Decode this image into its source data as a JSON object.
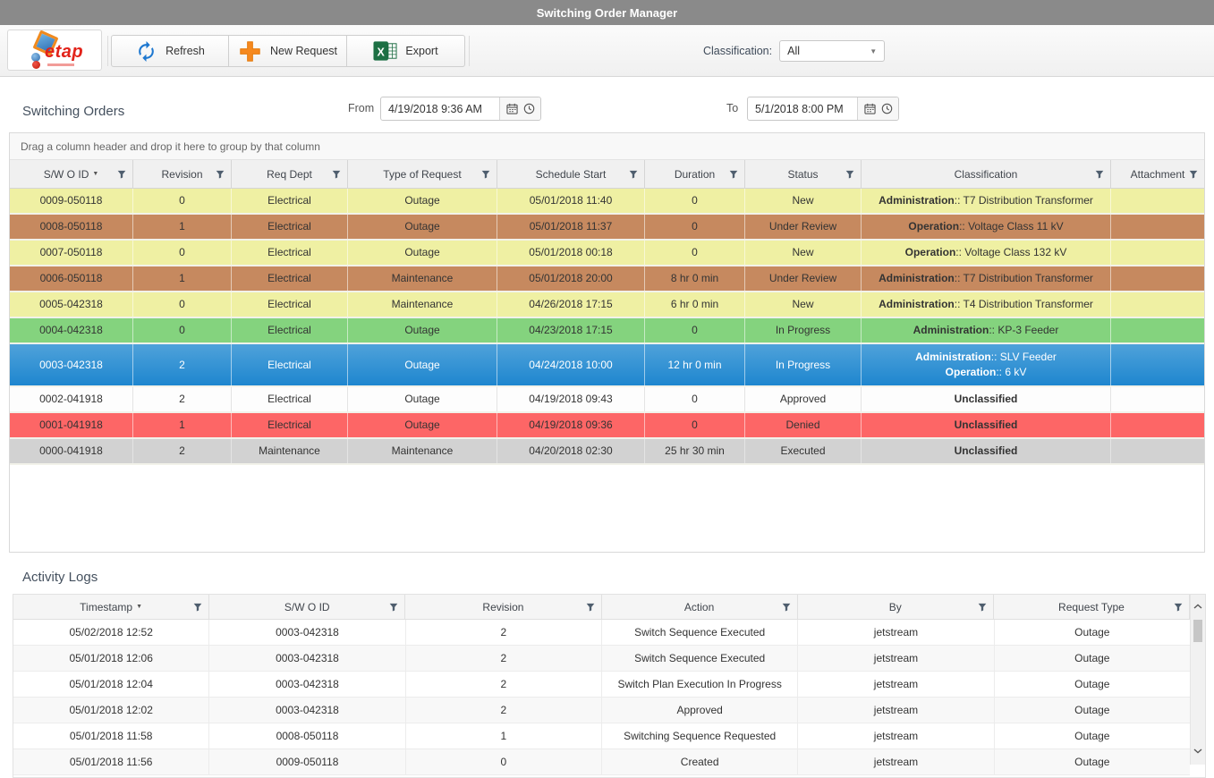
{
  "window": {
    "title": "Switching Order Manager"
  },
  "toolbar": {
    "logo_text": "etap",
    "buttons": [
      {
        "label": "Refresh",
        "icon": "refresh-icon"
      },
      {
        "label": "New Request",
        "icon": "plus-icon"
      },
      {
        "label": "Export",
        "icon": "excel-icon"
      }
    ],
    "classification_label": "Classification:",
    "classification_value": "All"
  },
  "orders": {
    "section_title": "Switching Orders",
    "from_label": "From",
    "from_value": "4/19/2018 9:36 AM",
    "to_label": "To",
    "to_value": "5/1/2018 8:00 PM",
    "group_hint": "Drag a column header and drop it here to group by that column",
    "columns": [
      {
        "label": "S/W O ID",
        "sorted": "desc"
      },
      {
        "label": "Revision"
      },
      {
        "label": "Req Dept"
      },
      {
        "label": "Type of Request"
      },
      {
        "label": "Schedule Start"
      },
      {
        "label": "Duration"
      },
      {
        "label": "Status"
      },
      {
        "label": "Classification"
      },
      {
        "label": "Attachment"
      }
    ],
    "rows": [
      {
        "id": "0009-050118",
        "revision": "0",
        "dept": "Electrical",
        "type": "Outage",
        "start": "05/01/2018 11:40",
        "duration": "0",
        "status": "New",
        "classification": [
          {
            "bold": "Administration",
            "text": ":: T7 Distribution Transformer"
          }
        ],
        "attachment": "",
        "color": "yellow"
      },
      {
        "id": "0008-050118",
        "revision": "1",
        "dept": "Electrical",
        "type": "Outage",
        "start": "05/01/2018 11:37",
        "duration": "0",
        "status": "Under Review",
        "classification": [
          {
            "bold": "Operation",
            "text": ":: Voltage Class 11 kV"
          }
        ],
        "attachment": "",
        "color": "orange"
      },
      {
        "id": "0007-050118",
        "revision": "0",
        "dept": "Electrical",
        "type": "Outage",
        "start": "05/01/2018 00:18",
        "duration": "0",
        "status": "New",
        "classification": [
          {
            "bold": "Operation",
            "text": ":: Voltage Class 132 kV"
          }
        ],
        "attachment": "",
        "color": "yellow"
      },
      {
        "id": "0006-050118",
        "revision": "1",
        "dept": "Electrical",
        "type": "Maintenance",
        "start": "05/01/2018 20:00",
        "duration": "8 hr 0 min",
        "status": "Under Review",
        "classification": [
          {
            "bold": "Administration",
            "text": ":: T7 Distribution Transformer"
          }
        ],
        "attachment": "",
        "color": "orange"
      },
      {
        "id": "0005-042318",
        "revision": "0",
        "dept": "Electrical",
        "type": "Maintenance",
        "start": "04/26/2018 17:15",
        "duration": "6 hr 0 min",
        "status": "New",
        "classification": [
          {
            "bold": "Administration",
            "text": ":: T4 Distribution Transformer"
          }
        ],
        "attachment": "",
        "color": "yellow"
      },
      {
        "id": "0004-042318",
        "revision": "0",
        "dept": "Electrical",
        "type": "Outage",
        "start": "04/23/2018 17:15",
        "duration": "0",
        "status": "In Progress",
        "classification": [
          {
            "bold": "Administration",
            "text": ":: KP-3 Feeder"
          }
        ],
        "attachment": "",
        "color": "green"
      },
      {
        "id": "0003-042318",
        "revision": "2",
        "dept": "Electrical",
        "type": "Outage",
        "start": "04/24/2018 10:00",
        "duration": "12 hr 0 min",
        "status": "In Progress",
        "classification": [
          {
            "bold": "Administration",
            "text": ":: SLV Feeder"
          },
          {
            "bold": "Operation",
            "text": ":: 6 kV"
          }
        ],
        "attachment": "",
        "color": "blue",
        "selected": true
      },
      {
        "id": "0002-041918",
        "revision": "2",
        "dept": "Electrical",
        "type": "Outage",
        "start": "04/19/2018 09:43",
        "duration": "0",
        "status": "Approved",
        "classification": [
          {
            "bold": "Unclassified",
            "text": ""
          }
        ],
        "attachment": "",
        "color": "white"
      },
      {
        "id": "0001-041918",
        "revision": "1",
        "dept": "Electrical",
        "type": "Outage",
        "start": "04/19/2018 09:36",
        "duration": "0",
        "status": "Denied",
        "classification": [
          {
            "bold": "Unclassified",
            "text": ""
          }
        ],
        "attachment": "",
        "color": "red"
      },
      {
        "id": "0000-041918",
        "revision": "2",
        "dept": "Maintenance",
        "type": "Maintenance",
        "start": "04/20/2018 02:30",
        "duration": "25 hr 30 min",
        "status": "Executed",
        "classification": [
          {
            "bold": "Unclassified",
            "text": ""
          }
        ],
        "attachment": "",
        "color": "gray"
      }
    ]
  },
  "activity": {
    "section_title": "Activity Logs",
    "columns": [
      {
        "label": "Timestamp",
        "sorted": "desc"
      },
      {
        "label": "S/W O ID"
      },
      {
        "label": "Revision"
      },
      {
        "label": "Action"
      },
      {
        "label": "By"
      },
      {
        "label": "Request Type"
      }
    ],
    "rows": [
      [
        "05/02/2018 12:52",
        "0003-042318",
        "2",
        "Switch Sequence Executed",
        "jetstream",
        "Outage"
      ],
      [
        "05/01/2018 12:06",
        "0003-042318",
        "2",
        "Switch Sequence Executed",
        "jetstream",
        "Outage"
      ],
      [
        "05/01/2018 12:04",
        "0003-042318",
        "2",
        "Switch Plan Execution In Progress",
        "jetstream",
        "Outage"
      ],
      [
        "05/01/2018 12:02",
        "0003-042318",
        "2",
        "Approved",
        "jetstream",
        "Outage"
      ],
      [
        "05/01/2018 11:58",
        "0008-050118",
        "1",
        "Switching Sequence Requested",
        "jetstream",
        "Outage"
      ],
      [
        "05/01/2018 11:56",
        "0009-050118",
        "0",
        "Created",
        "jetstream",
        "Outage"
      ]
    ]
  },
  "colors": {
    "titlebar_gray": "#8A8A8A",
    "accent_orange": "#F6891F",
    "accent_blue": "#1E78D0",
    "excel_green": "#1D7044",
    "row_yellow": "#EFF0A3",
    "row_orange": "#C6895F",
    "row_green": "#84D37E",
    "row_blue_top": "#4FA2DA",
    "row_blue_bottom": "#1E86CF",
    "row_red": "#FD6666",
    "row_gray": "#D2D2D2",
    "row_white": "#FDFDFD"
  }
}
